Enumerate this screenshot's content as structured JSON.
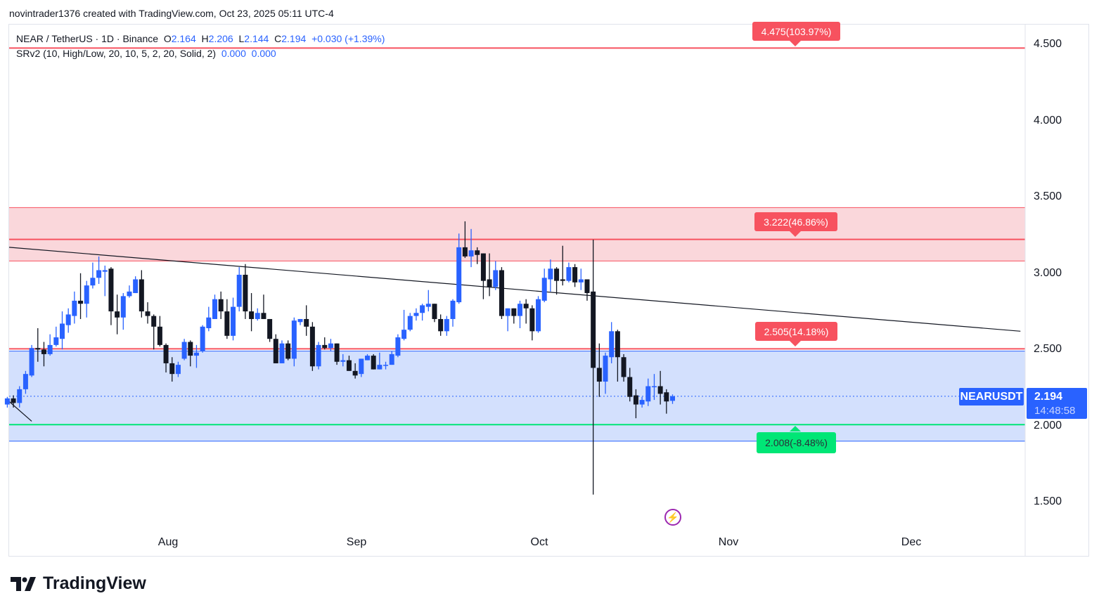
{
  "attribution": "novintrader1376 created with TradingView.com, Oct 23, 2025 05:11 UTC-4",
  "legend": {
    "symbol": "NEAR / TetherUS · 1D · Binance",
    "o_label": "O",
    "o": "2.164",
    "h_label": "H",
    "h": "2.206",
    "l_label": "L",
    "l": "2.144",
    "c_label": "C",
    "c": "2.194",
    "change": "+0.030 (+1.39%)",
    "indicator": "SRv2 (10, High/Low, 20, 10, 5, 2, 20, Solid, 2)",
    "ind_v1": "0.000",
    "ind_v2": "0.000"
  },
  "levels": [
    {
      "label": "4.475(103.97%)",
      "price": 4.475,
      "color": "#f7525f"
    },
    {
      "label": "3.222(46.86%)",
      "price": 3.222,
      "color": "#f7525f"
    },
    {
      "label": "2.505(14.18%)",
      "price": 2.505,
      "color": "#f7525f"
    },
    {
      "label": "2.008(-8.48%)",
      "price": 2.008,
      "color": "#00e676"
    }
  ],
  "price_label": {
    "symbol": "NEARUSDT",
    "price": "2.194",
    "countdown": "14:48:58"
  },
  "logo": "TradingView",
  "chart_data": {
    "type": "candlestick",
    "title": "NEAR / TetherUS · 1D · Binance",
    "ylim": [
      1.4,
      4.65
    ],
    "yticks": [
      "4.500",
      "4.000",
      "3.500",
      "3.000",
      "2.500",
      "2.000",
      "1.500"
    ],
    "ytick_values": [
      4.5,
      4.0,
      3.5,
      3.0,
      2.5,
      2.0,
      1.5
    ],
    "xticks": [
      {
        "label": "Aug",
        "day": 26
      },
      {
        "label": "Sep",
        "day": 57
      },
      {
        "label": "Oct",
        "day": 87
      },
      {
        "label": "Nov",
        "day": 118
      },
      {
        "label": "Dec",
        "day": 148
      }
    ],
    "x_days_visible": 167,
    "resistance_zone": [
      3.08,
      3.43
    ],
    "support_zone": [
      1.9,
      2.49
    ],
    "trendlines": [
      {
        "from": {
          "day": -1,
          "price": 3.17
        },
        "to": {
          "day": 166,
          "price": 2.62
        }
      },
      {
        "from": {
          "day": -1,
          "price": 2.16
        },
        "to": {
          "day": 4,
          "price": 2.03
        }
      }
    ],
    "colors": {
      "up": "#2962ff",
      "down": "#131722"
    },
    "ohlc": [
      [
        2.14,
        2.19,
        2.12,
        2.18
      ],
      [
        2.18,
        2.2,
        2.12,
        2.15
      ],
      [
        2.15,
        2.26,
        2.12,
        2.24
      ],
      [
        2.24,
        2.36,
        2.21,
        2.34
      ],
      [
        2.33,
        2.53,
        2.32,
        2.51
      ],
      [
        2.51,
        2.64,
        2.42,
        2.5
      ],
      [
        2.5,
        2.55,
        2.39,
        2.47
      ],
      [
        2.47,
        2.6,
        2.46,
        2.53
      ],
      [
        2.53,
        2.65,
        2.52,
        2.58
      ],
      [
        2.57,
        2.75,
        2.5,
        2.67
      ],
      [
        2.66,
        2.77,
        2.61,
        2.73
      ],
      [
        2.72,
        2.88,
        2.67,
        2.82
      ],
      [
        2.82,
        3.0,
        2.7,
        2.8
      ],
      [
        2.8,
        2.95,
        2.71,
        2.92
      ],
      [
        2.92,
        3.07,
        2.9,
        2.97
      ],
      [
        2.97,
        3.11,
        2.93,
        3.02
      ],
      [
        3.01,
        3.05,
        2.85,
        3.02
      ],
      [
        3.03,
        3.04,
        2.66,
        2.75
      ],
      [
        2.75,
        2.86,
        2.6,
        2.71
      ],
      [
        2.71,
        2.87,
        2.63,
        2.85
      ],
      [
        2.85,
        2.92,
        2.84,
        2.88
      ],
      [
        2.87,
        2.98,
        2.87,
        2.96
      ],
      [
        2.96,
        3.02,
        2.71,
        2.75
      ],
      [
        2.75,
        2.81,
        2.67,
        2.72
      ],
      [
        2.72,
        2.73,
        2.5,
        2.65
      ],
      [
        2.65,
        2.72,
        2.52,
        2.53
      ],
      [
        2.53,
        2.54,
        2.35,
        2.41
      ],
      [
        2.41,
        2.45,
        2.29,
        2.34
      ],
      [
        2.34,
        2.42,
        2.32,
        2.4
      ],
      [
        2.44,
        2.57,
        2.43,
        2.55
      ],
      [
        2.55,
        2.56,
        2.39,
        2.46
      ],
      [
        2.46,
        2.53,
        2.38,
        2.48
      ],
      [
        2.49,
        2.66,
        2.48,
        2.65
      ],
      [
        2.64,
        2.78,
        2.62,
        2.71
      ],
      [
        2.7,
        2.86,
        2.7,
        2.83
      ],
      [
        2.83,
        2.88,
        2.7,
        2.75
      ],
      [
        2.75,
        2.83,
        2.57,
        2.59
      ],
      [
        2.59,
        2.84,
        2.56,
        2.78
      ],
      [
        2.78,
        3.04,
        2.75,
        2.99
      ],
      [
        2.99,
        3.06,
        2.7,
        2.75
      ],
      [
        2.75,
        2.87,
        2.62,
        2.7
      ],
      [
        2.7,
        2.77,
        2.69,
        2.74
      ],
      [
        2.74,
        2.86,
        2.7,
        2.7
      ],
      [
        2.7,
        2.7,
        2.55,
        2.57
      ],
      [
        2.57,
        2.6,
        2.41,
        2.41
      ],
      [
        2.41,
        2.56,
        2.41,
        2.54
      ],
      [
        2.54,
        2.56,
        2.43,
        2.44
      ],
      [
        2.44,
        2.71,
        2.39,
        2.69
      ],
      [
        2.68,
        2.7,
        2.66,
        2.7
      ],
      [
        2.7,
        2.79,
        2.59,
        2.65
      ],
      [
        2.65,
        2.68,
        2.36,
        2.39
      ],
      [
        2.39,
        2.55,
        2.37,
        2.53
      ],
      [
        2.53,
        2.58,
        2.5,
        2.51
      ],
      [
        2.51,
        2.57,
        2.49,
        2.54
      ],
      [
        2.54,
        2.54,
        2.4,
        2.42
      ],
      [
        2.42,
        2.47,
        2.39,
        2.43
      ],
      [
        2.43,
        2.46,
        2.36,
        2.36
      ],
      [
        2.36,
        2.41,
        2.31,
        2.33
      ],
      [
        2.34,
        2.44,
        2.32,
        2.44
      ],
      [
        2.43,
        2.47,
        2.43,
        2.46
      ],
      [
        2.46,
        2.47,
        2.37,
        2.37
      ],
      [
        2.37,
        2.48,
        2.37,
        2.4
      ],
      [
        2.4,
        2.42,
        2.37,
        2.4
      ],
      [
        2.4,
        2.49,
        2.4,
        2.47
      ],
      [
        2.46,
        2.6,
        2.45,
        2.58
      ],
      [
        2.57,
        2.76,
        2.56,
        2.63
      ],
      [
        2.63,
        2.74,
        2.62,
        2.72
      ],
      [
        2.72,
        2.77,
        2.69,
        2.74
      ],
      [
        2.74,
        2.8,
        2.69,
        2.79
      ],
      [
        2.78,
        2.89,
        2.75,
        2.8
      ],
      [
        2.8,
        2.8,
        2.68,
        2.7
      ],
      [
        2.7,
        2.73,
        2.59,
        2.62
      ],
      [
        2.62,
        2.72,
        2.59,
        2.7
      ],
      [
        2.7,
        2.83,
        2.65,
        2.82
      ],
      [
        2.81,
        3.26,
        2.8,
        3.17
      ],
      [
        3.17,
        3.34,
        3.1,
        3.11
      ],
      [
        3.11,
        3.29,
        3.04,
        3.15
      ],
      [
        3.15,
        3.17,
        3.06,
        3.12
      ],
      [
        3.13,
        3.13,
        2.83,
        2.95
      ],
      [
        2.96,
        3.13,
        2.85,
        2.91
      ],
      [
        2.91,
        3.08,
        2.89,
        3.02
      ],
      [
        3.02,
        3.04,
        2.7,
        2.72
      ],
      [
        2.72,
        2.77,
        2.62,
        2.77
      ],
      [
        2.77,
        2.77,
        2.67,
        2.72
      ],
      [
        2.72,
        2.82,
        2.64,
        2.8
      ],
      [
        2.8,
        2.83,
        2.67,
        2.77
      ],
      [
        2.77,
        2.79,
        2.56,
        2.62
      ],
      [
        2.62,
        2.85,
        2.61,
        2.83
      ],
      [
        2.82,
        3.03,
        2.81,
        2.97
      ],
      [
        2.96,
        3.09,
        2.88,
        3.03
      ],
      [
        3.03,
        3.04,
        2.86,
        2.95
      ],
      [
        2.96,
        3.18,
        2.92,
        2.95
      ],
      [
        2.95,
        3.07,
        2.94,
        3.04
      ],
      [
        3.04,
        3.06,
        2.91,
        2.94
      ],
      [
        2.94,
        3.03,
        2.89,
        2.96
      ],
      [
        2.96,
        2.96,
        2.82,
        2.87
      ],
      [
        2.88,
        3.22,
        1.55,
        2.38
      ],
      [
        2.38,
        2.54,
        2.19,
        2.29
      ],
      [
        2.29,
        2.48,
        2.21,
        2.46
      ],
      [
        2.45,
        2.68,
        2.41,
        2.62
      ],
      [
        2.62,
        2.63,
        2.29,
        2.45
      ],
      [
        2.45,
        2.47,
        2.29,
        2.32
      ],
      [
        2.32,
        2.38,
        2.16,
        2.19
      ],
      [
        2.2,
        2.24,
        2.05,
        2.14
      ],
      [
        2.14,
        2.19,
        2.12,
        2.17
      ],
      [
        2.16,
        2.31,
        2.13,
        2.26
      ],
      [
        2.26,
        2.34,
        2.17,
        2.26
      ],
      [
        2.26,
        2.36,
        2.14,
        2.21
      ],
      [
        2.22,
        2.24,
        2.08,
        2.16
      ],
      [
        2.164,
        2.206,
        2.144,
        2.194
      ]
    ]
  }
}
